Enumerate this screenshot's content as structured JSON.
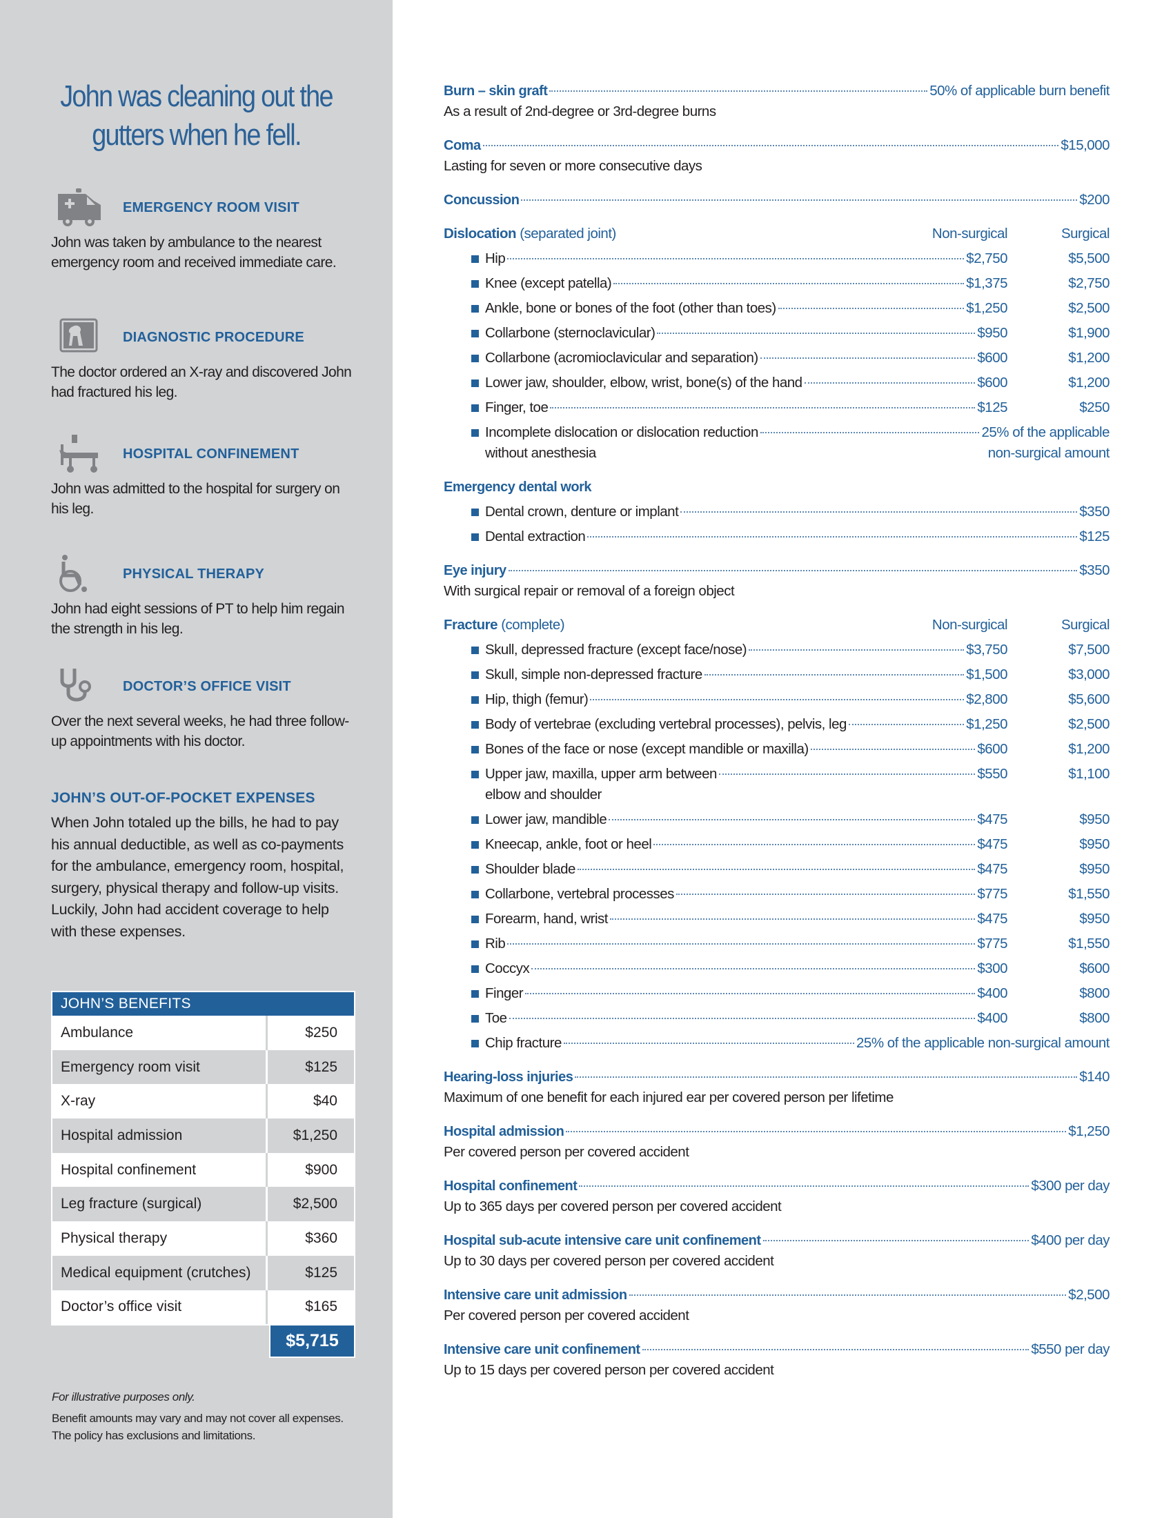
{
  "sidebar": {
    "title": "John was cleaning out the gutters when he fell.",
    "steps": [
      {
        "icon": "ambulance-icon",
        "heading": "EMERGENCY ROOM VISIT",
        "text": "John was taken by ambulance to the nearest emergency room and received immediate care."
      },
      {
        "icon": "xray-icon",
        "heading": "DIAGNOSTIC PROCEDURE",
        "text": "The doctor ordered an X-ray and discovered John had fractured his leg."
      },
      {
        "icon": "hospital-bed-icon",
        "heading": "HOSPITAL CONFINEMENT",
        "text": "John was admitted to the hospital for surgery on his leg."
      },
      {
        "icon": "wheelchair-icon",
        "heading": "PHYSICAL THERAPY",
        "text": "John had eight sessions of PT to help him regain the strength in his leg."
      },
      {
        "icon": "stethoscope-icon",
        "heading": "DOCTOR’S OFFICE VISIT",
        "text": "Over the next several weeks, he had three follow-up appointments with his doctor."
      }
    ],
    "oop_heading": "JOHN’S OUT-OF-POCKET EXPENSES",
    "oop_text": "When John totaled up the bills, he had to pay his annual deductible, as well as co-payments for the ambulance, emergency room, hospital, surgery, physical therapy and follow-up visits. Luckily, John had accident coverage to help with these expenses.",
    "benefits": {
      "heading": "JOHN’S BENEFITS",
      "rows": [
        {
          "label": "Ambulance",
          "value": "$250"
        },
        {
          "label": "Emergency room visit",
          "value": "$125"
        },
        {
          "label": "X-ray",
          "value": "$40"
        },
        {
          "label": "Hospital admission",
          "value": "$1,250"
        },
        {
          "label": "Hospital confinement",
          "value": "$900"
        },
        {
          "label": "Leg fracture (surgical)",
          "value": "$2,500"
        },
        {
          "label": "Physical therapy",
          "value": "$360"
        },
        {
          "label": "Medical equipment (crutches)",
          "value": "$125"
        },
        {
          "label": "Doctor’s office visit",
          "value": "$165"
        }
      ],
      "total": "$5,715"
    },
    "footnote_italic": "For illustrative purposes only.",
    "footnote": "Benefit amounts may vary and may not cover all expenses. The policy has exclusions and limitations."
  },
  "colors": {
    "accent": "#22609a",
    "sidebar_bg": "#d1d3d5",
    "text": "#231f20"
  },
  "main": {
    "col_nonsurgical": "Non-surgical",
    "col_surgical": "Surgical",
    "burn": {
      "title": "Burn – skin graft",
      "value": "50% of applicable burn benefit",
      "sub": "As a result of 2nd-degree or 3rd-degree burns"
    },
    "coma": {
      "title": "Coma",
      "value": "$15,000",
      "sub": "Lasting for seven or more consecutive days"
    },
    "concussion": {
      "title": "Concussion",
      "value": "$200"
    },
    "dislocation": {
      "title": "Dislocation",
      "title_note": "(separated joint)",
      "items": [
        {
          "label": "Hip",
          "ns": "$2,750",
          "s": "$5,500"
        },
        {
          "label": "Knee (except patella)",
          "ns": "$1,375",
          "s": "$2,750"
        },
        {
          "label": "Ankle, bone or bones of the foot (other than toes)",
          "ns": "$1,250",
          "s": "$2,500"
        },
        {
          "label": "Collarbone (sternoclavicular)",
          "ns": "$950",
          "s": "$1,900"
        },
        {
          "label": "Collarbone (acromioclavicular and separation)",
          "ns": "$600",
          "s": "$1,200"
        },
        {
          "label": "Lower jaw, shoulder, elbow, wrist, bone(s) of the hand",
          "ns": "$600",
          "s": "$1,200"
        },
        {
          "label": "Finger, toe",
          "ns": "$125",
          "s": "$250"
        }
      ],
      "incomplete": {
        "label1": "Incomplete dislocation or dislocation reduction",
        "label2": "without anesthesia",
        "value1": "25% of the applicable",
        "value2": "non-surgical amount"
      }
    },
    "dental": {
      "title": "Emergency dental work",
      "items": [
        {
          "label": "Dental crown, denture or implant",
          "value": "$350"
        },
        {
          "label": "Dental extraction",
          "value": "$125"
        }
      ]
    },
    "eye": {
      "title": "Eye injury",
      "value": "$350",
      "sub": "With surgical repair or removal of a foreign object"
    },
    "fracture": {
      "title": "Fracture",
      "title_note": "(complete)",
      "items": [
        {
          "label": "Skull, depressed fracture (except face/nose)",
          "ns": "$3,750",
          "s": "$7,500"
        },
        {
          "label": "Skull, simple non-depressed fracture",
          "ns": "$1,500",
          "s": "$3,000"
        },
        {
          "label": "Hip, thigh (femur)",
          "ns": "$2,800",
          "s": "$5,600"
        },
        {
          "label": "Body of vertebrae (excluding vertebral processes), pelvis, leg",
          "ns": "$1,250",
          "s": "$2,500"
        },
        {
          "label": "Bones of the face or nose (except mandible or maxilla)",
          "ns": "$600",
          "s": "$1,200"
        },
        {
          "label": "Upper jaw, maxilla, upper arm between",
          "label2": "elbow and shoulder",
          "ns": "$550",
          "s": "$1,100"
        },
        {
          "label": "Lower jaw, mandible",
          "ns": "$475",
          "s": "$950"
        },
        {
          "label": "Kneecap, ankle, foot or heel",
          "ns": "$475",
          "s": "$950"
        },
        {
          "label": "Shoulder blade",
          "ns": "$475",
          "s": "$950"
        },
        {
          "label": "Collarbone, vertebral processes",
          "ns": "$775",
          "s": "$1,550"
        },
        {
          "label": "Forearm, hand, wrist",
          "ns": "$475",
          "s": "$950"
        },
        {
          "label": "Rib",
          "ns": "$775",
          "s": "$1,550"
        },
        {
          "label": "Coccyx",
          "ns": "$300",
          "s": "$600"
        },
        {
          "label": "Finger",
          "ns": "$400",
          "s": "$800"
        },
        {
          "label": "Toe",
          "ns": "$400",
          "s": "$800"
        }
      ],
      "chip": {
        "label": "Chip fracture",
        "value": "25% of the applicable non-surgical amount"
      }
    },
    "hearing": {
      "title": "Hearing-loss injuries",
      "value": "$140",
      "sub": "Maximum of one benefit for each injured ear per covered person per lifetime"
    },
    "hosp_adm": {
      "title": "Hospital admission",
      "value": "$1,250",
      "sub": "Per covered person per covered accident"
    },
    "hosp_conf": {
      "title": "Hospital confinement",
      "value": "$300 per day",
      "sub": "Up to 365 days per covered person per covered accident"
    },
    "subacute": {
      "title": "Hospital sub-acute intensive care unit confinement",
      "value": "$400 per day",
      "sub": "Up to 30 days per covered person per covered accident"
    },
    "icu_adm": {
      "title": "Intensive care unit admission",
      "value": "$2,500",
      "sub": "Per covered person per covered accident"
    },
    "icu_conf": {
      "title": "Intensive care unit confinement",
      "value": "$550 per day",
      "sub": "Up to 15 days per covered person per covered accident"
    }
  }
}
